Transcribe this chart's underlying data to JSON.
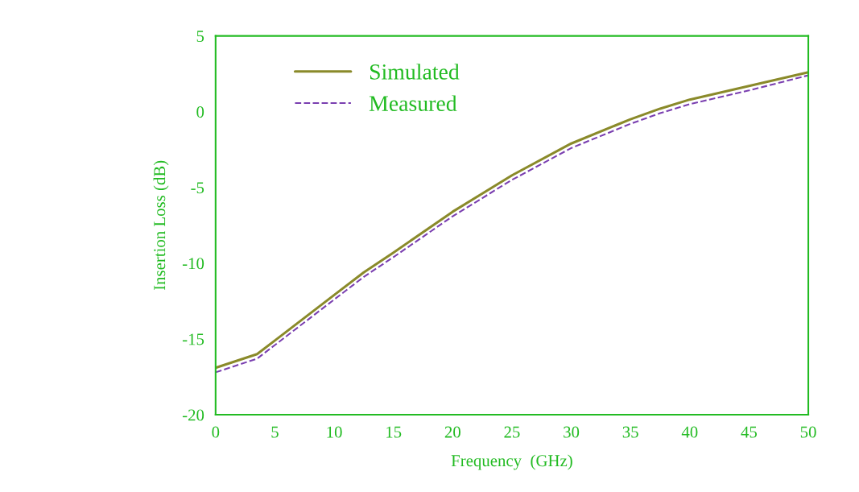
{
  "chart_data": {
    "type": "line",
    "xlabel": "Frequency  (GHz)",
    "ylabel": "Insertion Loss (dB)",
    "x": [
      0,
      3.5,
      5,
      7.5,
      10,
      12.5,
      15,
      20,
      25,
      30,
      35,
      37.5,
      40,
      45,
      50
    ],
    "series": [
      {
        "name": "Simulated",
        "color": "#8a8a2a",
        "line_style": "solid",
        "values": [
          -16.9,
          -16.0,
          -15.1,
          -13.6,
          -12.1,
          -10.6,
          -9.3,
          -6.6,
          -4.2,
          -2.1,
          -0.5,
          0.2,
          0.8,
          1.7,
          2.6
        ]
      },
      {
        "name": "Measured",
        "color": "#7a3fb0",
        "line_style": "dashed",
        "values": [
          -17.2,
          -16.3,
          -15.4,
          -13.9,
          -12.4,
          -10.9,
          -9.6,
          -6.9,
          -4.5,
          -2.4,
          -0.8,
          -0.1,
          0.5,
          1.4,
          2.4
        ]
      }
    ],
    "xlim": [
      0,
      50
    ],
    "ylim": [
      -20,
      5
    ],
    "xticks": [
      0,
      5,
      10,
      15,
      20,
      25,
      30,
      35,
      40,
      45,
      50
    ],
    "yticks": [
      -20,
      -15,
      -10,
      -5,
      0,
      5
    ],
    "grid": false,
    "legend": "top left",
    "marker": "none"
  }
}
